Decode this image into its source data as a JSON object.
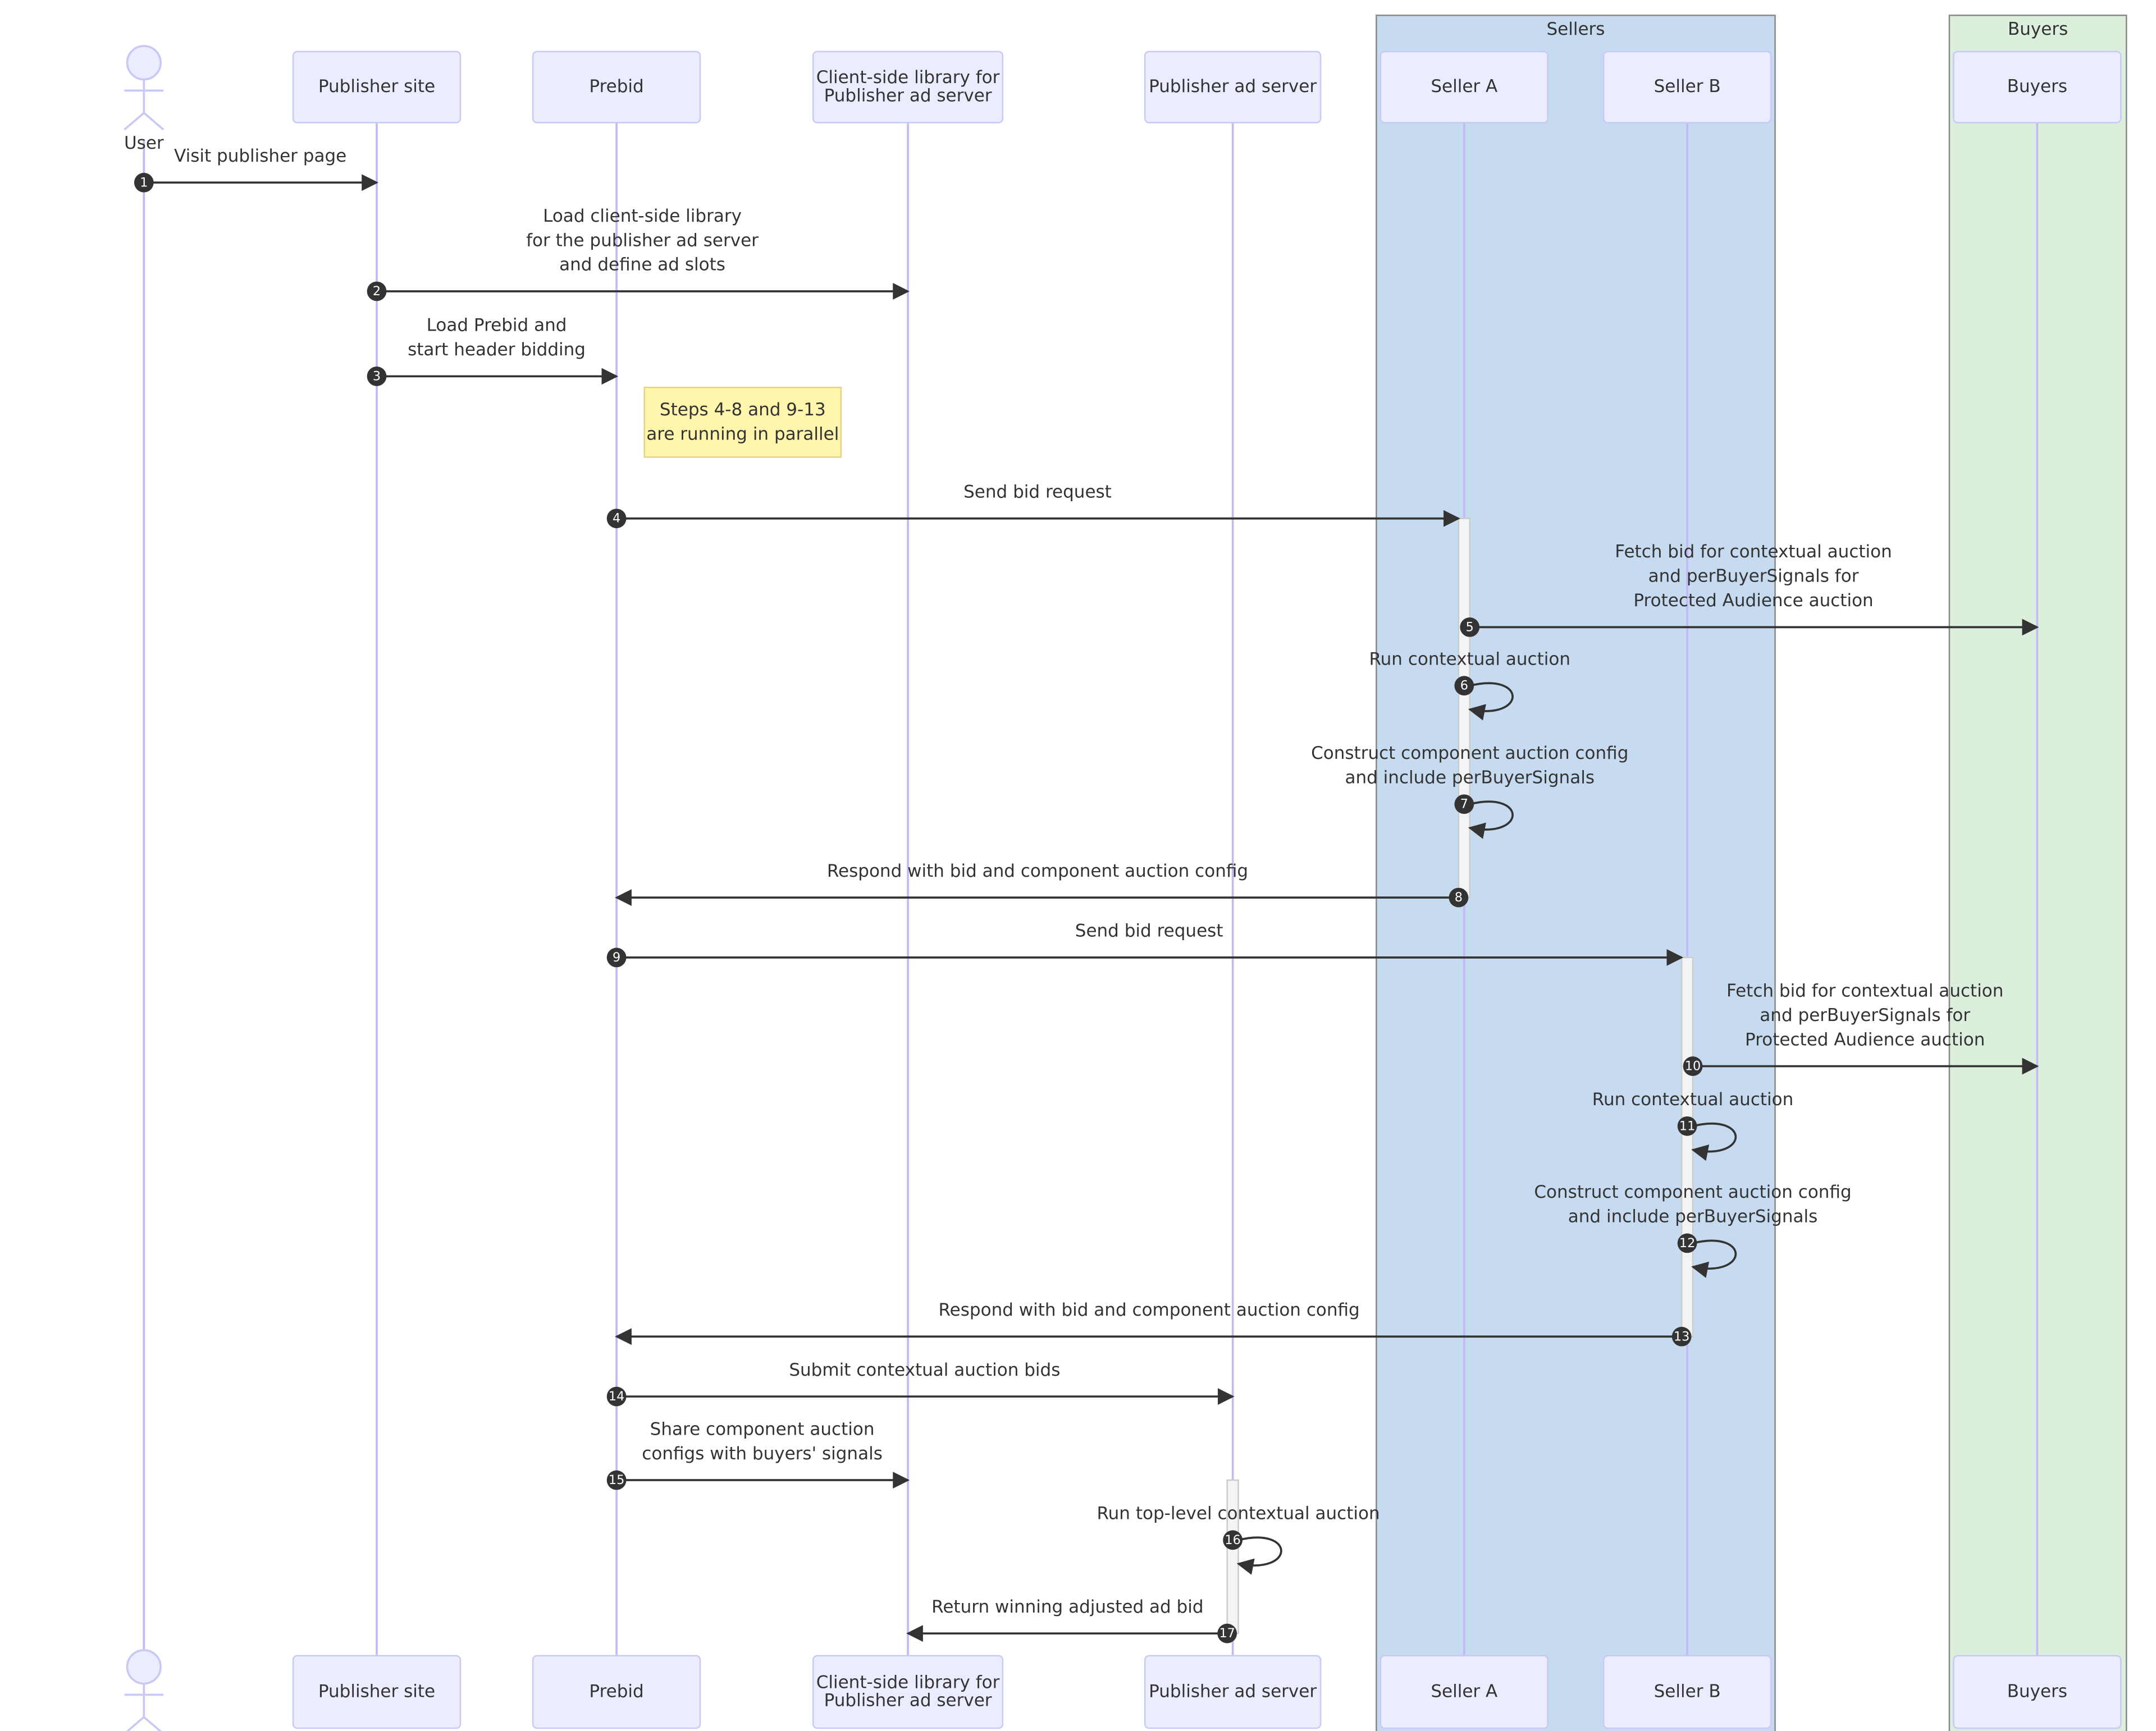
{
  "colors": {
    "actor_fill": "#ececff",
    "actor_stroke": "#c9c9f5",
    "lifeline": "#c3baf5",
    "arrow": "#333333",
    "note_fill": "#fff5ad",
    "note_stroke": "#e6d280",
    "sellers_box": "#c6dbef",
    "buyers_box": "#dcefdc",
    "group_stroke": "#888888",
    "activation": "#f4f4f4"
  },
  "groups": [
    {
      "id": "sellers",
      "label": "Sellers"
    },
    {
      "id": "buyers",
      "label": "Buyers"
    }
  ],
  "participants": [
    {
      "id": "user",
      "label": [
        "User"
      ],
      "type": "actor"
    },
    {
      "id": "pub",
      "label": [
        "Publisher site"
      ],
      "type": "participant"
    },
    {
      "id": "prebid",
      "label": [
        "Prebid"
      ],
      "type": "participant"
    },
    {
      "id": "client",
      "label": [
        "Client-side library for",
        "Publisher ad server"
      ],
      "type": "participant"
    },
    {
      "id": "adserver",
      "label": [
        "Publisher ad server"
      ],
      "type": "participant"
    },
    {
      "id": "sellerA",
      "label": [
        "Seller A"
      ],
      "type": "participant"
    },
    {
      "id": "sellerB",
      "label": [
        "Seller B"
      ],
      "type": "participant"
    },
    {
      "id": "buyers",
      "label": [
        "Buyers"
      ],
      "type": "participant"
    }
  ],
  "note": {
    "lines": [
      "Steps 4-8 and 9-13",
      "are running in parallel"
    ]
  },
  "messages": [
    {
      "n": "1",
      "from": "user",
      "to": "pub",
      "text": [
        "Visit publisher page"
      ]
    },
    {
      "n": "2",
      "from": "pub",
      "to": "client",
      "text": [
        "Load client-side library",
        "for the publisher ad server",
        "and define ad slots"
      ]
    },
    {
      "n": "3",
      "from": "pub",
      "to": "prebid",
      "text": [
        "Load Prebid and",
        "start header bidding"
      ]
    },
    {
      "n": "4",
      "from": "prebid",
      "to": "sellerA",
      "text": [
        "Send bid request"
      ]
    },
    {
      "n": "5",
      "from": "sellerA",
      "to": "buyers",
      "text": [
        "Fetch bid for contextual auction",
        "and perBuyerSignals for",
        "Protected Audience auction"
      ]
    },
    {
      "n": "6",
      "from": "sellerA",
      "to": "sellerA",
      "text": [
        "Run contextual auction"
      ]
    },
    {
      "n": "7",
      "from": "sellerA",
      "to": "sellerA",
      "text": [
        "Construct component auction config",
        "and include perBuyerSignals"
      ]
    },
    {
      "n": "8",
      "from": "sellerA",
      "to": "prebid",
      "text": [
        "Respond with bid and component auction config"
      ]
    },
    {
      "n": "9",
      "from": "prebid",
      "to": "sellerB",
      "text": [
        "Send bid request"
      ]
    },
    {
      "n": "10",
      "from": "sellerB",
      "to": "buyers",
      "text": [
        "Fetch bid for contextual auction",
        "and perBuyerSignals for",
        "Protected Audience auction"
      ]
    },
    {
      "n": "11",
      "from": "sellerB",
      "to": "sellerB",
      "text": [
        "Run contextual auction"
      ]
    },
    {
      "n": "12",
      "from": "sellerB",
      "to": "sellerB",
      "text": [
        "Construct component auction config",
        "and include perBuyerSignals"
      ]
    },
    {
      "n": "13",
      "from": "sellerB",
      "to": "prebid",
      "text": [
        "Respond with bid and component auction config"
      ]
    },
    {
      "n": "14",
      "from": "prebid",
      "to": "adserver",
      "text": [
        "Submit contextual auction bids"
      ]
    },
    {
      "n": "15",
      "from": "prebid",
      "to": "client",
      "text": [
        "Share component auction",
        "configs with buyers' signals"
      ]
    },
    {
      "n": "16",
      "from": "adserver",
      "to": "adserver",
      "text": [
        "Run top-level contextual auction"
      ]
    },
    {
      "n": "17",
      "from": "adserver",
      "to": "client",
      "text": [
        "Return winning adjusted ad bid"
      ]
    }
  ]
}
